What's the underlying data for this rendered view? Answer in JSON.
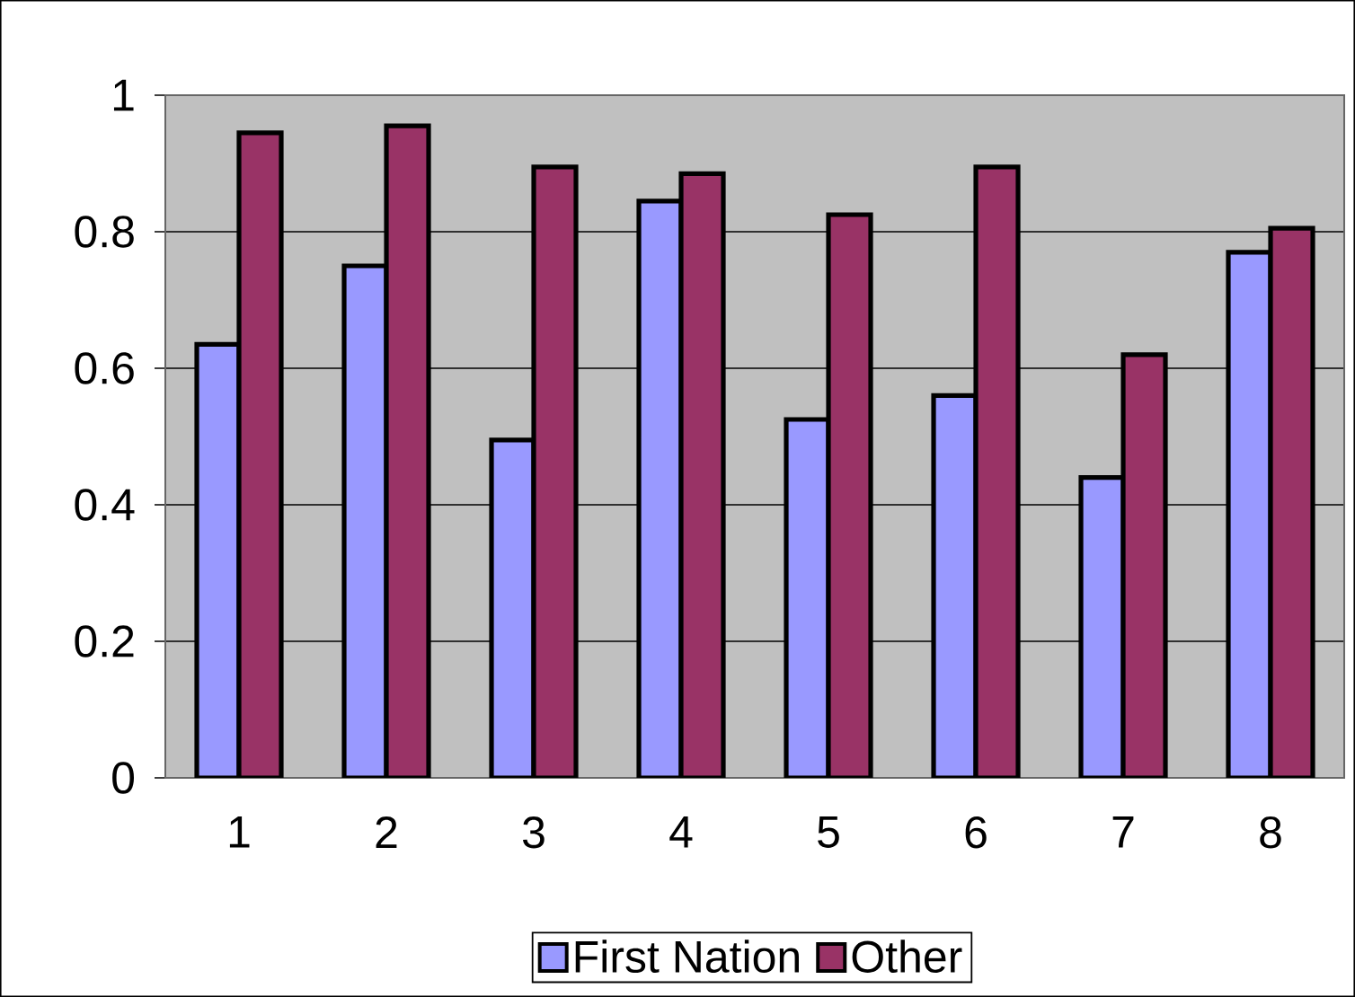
{
  "chart_data": {
    "type": "bar",
    "categories": [
      "1",
      "2",
      "3",
      "4",
      "5",
      "6",
      "7",
      "8"
    ],
    "series": [
      {
        "name": "First Nation",
        "color": "#9999ff",
        "values": [
          0.635,
          0.75,
          0.495,
          0.845,
          0.525,
          0.56,
          0.44,
          0.77
        ]
      },
      {
        "name": "Other",
        "color": "#993366",
        "values": [
          0.945,
          0.955,
          0.895,
          0.885,
          0.825,
          0.895,
          0.62,
          0.805
        ]
      }
    ],
    "ylim": [
      0,
      1
    ],
    "yticks": [
      0,
      0.2,
      0.4,
      0.6,
      0.8,
      1
    ],
    "grid": "y",
    "legend": "bottom"
  }
}
